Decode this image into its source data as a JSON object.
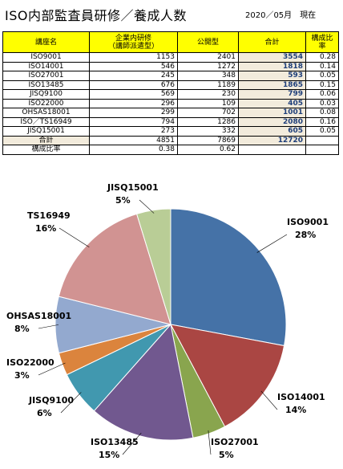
{
  "header": {
    "title": "ISO内部監査員研修／養成人数",
    "date": "2020／05月　現在"
  },
  "table": {
    "columns": [
      "講座名",
      "企業内研修\n（講師派遣型）",
      "公開型",
      "合計",
      "構成比率"
    ],
    "rows": [
      {
        "name": "ISO9001",
        "inhouse": "1153",
        "public": "2401",
        "total": "3554",
        "ratio": "0.28"
      },
      {
        "name": "ISO14001",
        "inhouse": "546",
        "public": "1272",
        "total": "1818",
        "ratio": "0.14"
      },
      {
        "name": "ISO27001",
        "inhouse": "245",
        "public": "348",
        "total": "593",
        "ratio": "0.05"
      },
      {
        "name": "ISO13485",
        "inhouse": "676",
        "public": "1189",
        "total": "1865",
        "ratio": "0.15"
      },
      {
        "name": "JISQ9100",
        "inhouse": "569",
        "public": "230",
        "total": "799",
        "ratio": "0.06"
      },
      {
        "name": "ISO22000",
        "inhouse": "296",
        "public": "109",
        "total": "405",
        "ratio": "0.03"
      },
      {
        "name": "OHSAS18001",
        "inhouse": "299",
        "public": "702",
        "total": "1001",
        "ratio": "0.08"
      },
      {
        "name": "ISO／TS16949",
        "inhouse": "794",
        "public": "1286",
        "total": "2080",
        "ratio": "0.16"
      },
      {
        "name": "JISQ15001",
        "inhouse": "273",
        "public": "332",
        "total": "605",
        "ratio": "0.05"
      }
    ],
    "sum": {
      "name": "合計",
      "inhouse": "4851",
      "public": "7869",
      "total": "12720",
      "ratio": ""
    },
    "share": {
      "name": "構成比率",
      "inhouse": "0.38",
      "public": "0.62",
      "total": "",
      "ratio": ""
    }
  },
  "chart_data": {
    "type": "pie",
    "categories": [
      "ISO9001",
      "ISO14001",
      "ISO27001",
      "ISO13485",
      "JISQ9100",
      "ISO22000",
      "OHSAS18001",
      "TS16949",
      "JISQ15001"
    ],
    "values": [
      3554,
      1818,
      593,
      1865,
      799,
      405,
      1001,
      2080,
      605
    ],
    "percent_labels": [
      "28%",
      "14%",
      "5%",
      "15%",
      "6%",
      "3%",
      "8%",
      "16%",
      "5%"
    ],
    "colors": [
      "#4572a7",
      "#aa4643",
      "#89a54e",
      "#71588f",
      "#4198af",
      "#db843d",
      "#93a9cf",
      "#d19392",
      "#b9cd96"
    ]
  }
}
